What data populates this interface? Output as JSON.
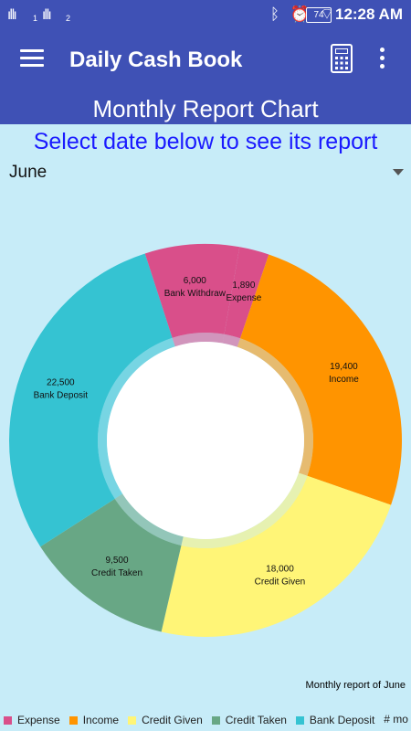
{
  "status": {
    "sim1": "1",
    "sim2": "2",
    "battery": "74",
    "time": "12:28 AM"
  },
  "appbar": {
    "title": "Daily Cash Book"
  },
  "header": {
    "title": "Monthly Report Chart"
  },
  "instruction": "Select date below to see its report",
  "month_selector": {
    "selected": "June"
  },
  "chart_data": {
    "type": "pie",
    "variant": "donut",
    "description": "Monthly report of June",
    "legend_position": "bottom",
    "slices": [
      {
        "name": "Expense",
        "value": 1890,
        "value_label": "1,890",
        "color": "#d94f8a"
      },
      {
        "name": "Income",
        "value": 19400,
        "value_label": "19,400",
        "color": "#ff9400"
      },
      {
        "name": "Credit Given",
        "value": 18000,
        "value_label": "18,000",
        "color": "#fff577"
      },
      {
        "name": "Credit Taken",
        "value": 9500,
        "value_label": "9,500",
        "color": "#68a785"
      },
      {
        "name": "Bank Deposit",
        "value": 22500,
        "value_label": "22,500",
        "color": "#35c3d2"
      },
      {
        "name": "Bank Withdraw",
        "value": 6000,
        "value_label": "6,000",
        "color": "#d94f8a"
      }
    ]
  },
  "legend": {
    "items": [
      {
        "label": "Expense",
        "color": "#d94f8a"
      },
      {
        "label": "Income",
        "color": "#ff9400"
      },
      {
        "label": "Credit Given",
        "color": "#fff577"
      },
      {
        "label": "Credit Taken",
        "color": "#68a785"
      },
      {
        "label": "Bank Deposit",
        "color": "#35c3d2"
      }
    ],
    "more": "# mo"
  }
}
